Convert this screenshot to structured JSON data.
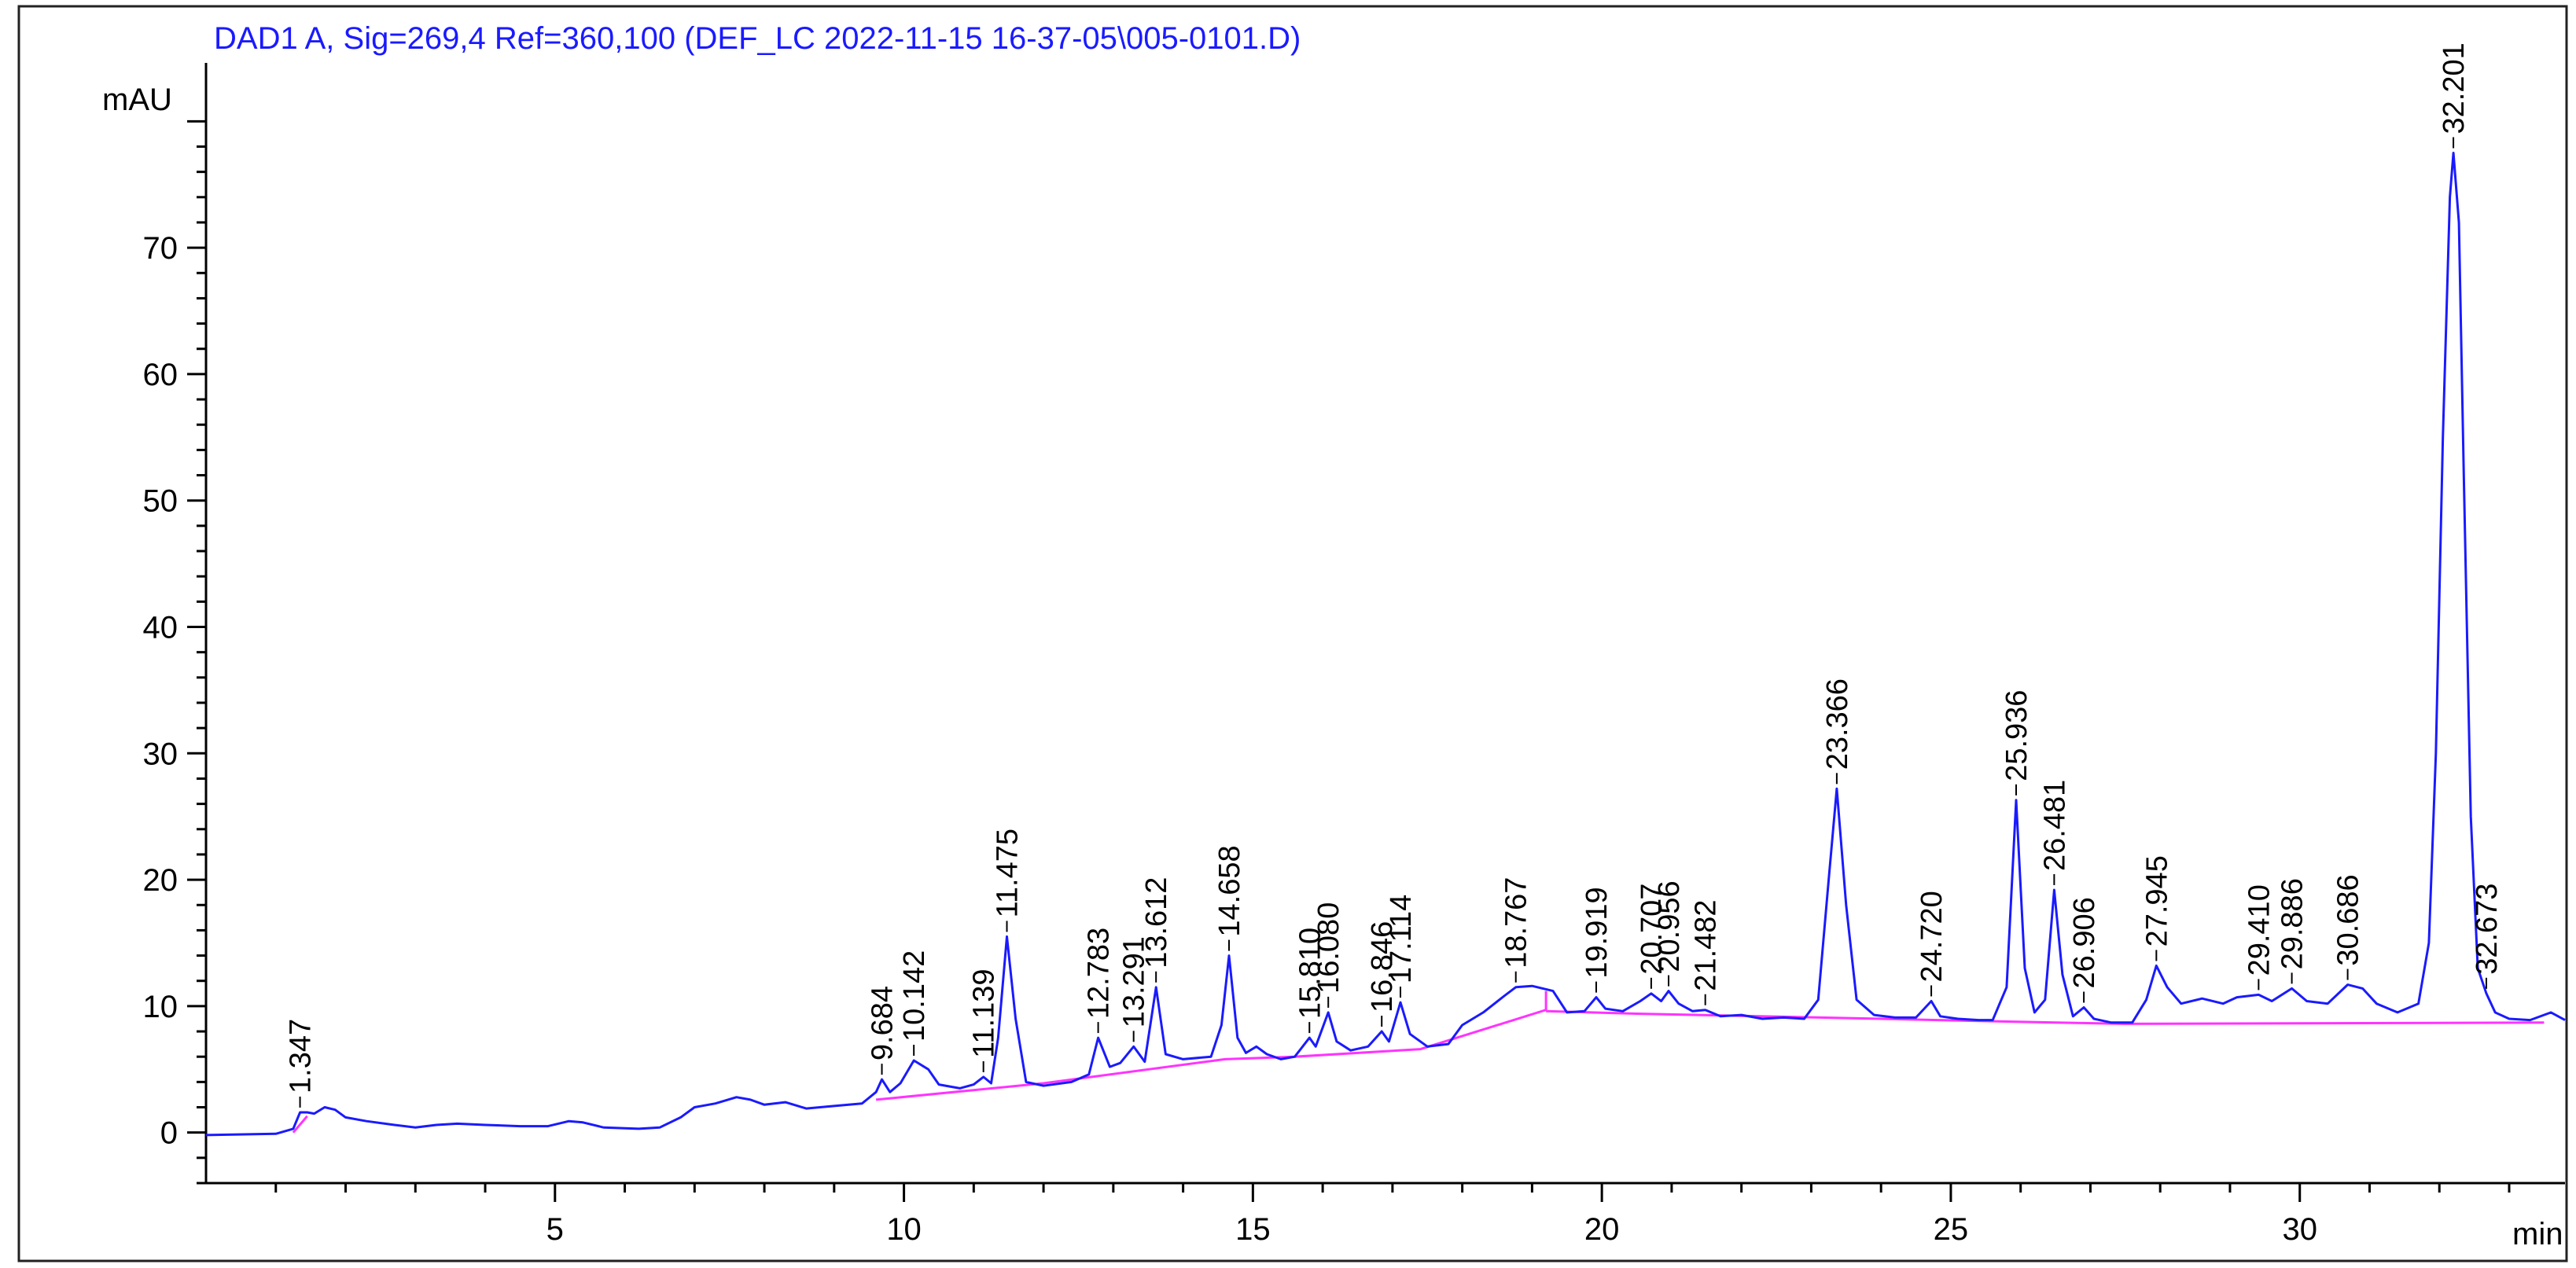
{
  "chart_data": {
    "type": "line",
    "title": "DAD1 A, Sig=269,4 Ref=360,100 (DEF_LC 2022-11-15 16-37-05\\005-0101.D)",
    "ylabel": "mAU",
    "xlabel": "min",
    "xlim": [
      0,
      33.8
    ],
    "ylim": [
      -4,
      84
    ],
    "x_ticks": [
      5,
      10,
      15,
      20,
      25,
      30
    ],
    "y_ticks": [
      0,
      10,
      20,
      30,
      40,
      50,
      60,
      70
    ],
    "grid": false,
    "colors": {
      "signal": "#1a1aff",
      "baseline": "#ff33ff",
      "title": "#1a1aff"
    },
    "series": [
      {
        "points": [
          [
            0,
            -0.2
          ],
          [
            1.0,
            -0.1
          ],
          [
            1.25,
            0.3
          ],
          [
            1.347,
            1.6
          ],
          [
            1.45,
            1.6
          ],
          [
            1.55,
            1.5
          ],
          [
            1.7,
            2.0
          ],
          [
            1.85,
            1.8
          ],
          [
            2.0,
            1.2
          ],
          [
            2.3,
            0.9
          ],
          [
            2.7,
            0.6
          ],
          [
            3.0,
            0.4
          ],
          [
            3.3,
            0.6
          ],
          [
            3.6,
            0.7
          ],
          [
            4.0,
            0.6
          ],
          [
            4.5,
            0.5
          ],
          [
            4.9,
            0.5
          ],
          [
            5.2,
            0.9
          ],
          [
            5.4,
            0.8
          ],
          [
            5.7,
            0.4
          ],
          [
            6.2,
            0.3
          ],
          [
            6.5,
            0.4
          ],
          [
            6.8,
            1.2
          ],
          [
            7.0,
            2.0
          ],
          [
            7.3,
            2.3
          ],
          [
            7.6,
            2.8
          ],
          [
            7.8,
            2.6
          ],
          [
            8.0,
            2.2
          ],
          [
            8.3,
            2.4
          ],
          [
            8.6,
            1.9
          ],
          [
            9.0,
            2.1
          ],
          [
            9.4,
            2.3
          ],
          [
            9.6,
            3.2
          ],
          [
            9.684,
            4.2
          ],
          [
            9.8,
            3.2
          ],
          [
            9.95,
            3.9
          ],
          [
            10.142,
            5.7
          ],
          [
            10.35,
            5.0
          ],
          [
            10.5,
            3.8
          ],
          [
            10.8,
            3.5
          ],
          [
            11.0,
            3.8
          ],
          [
            11.139,
            4.4
          ],
          [
            11.25,
            3.9
          ],
          [
            11.35,
            7.5
          ],
          [
            11.475,
            15.5
          ],
          [
            11.6,
            9.0
          ],
          [
            11.75,
            4.0
          ],
          [
            12.0,
            3.7
          ],
          [
            12.4,
            4.0
          ],
          [
            12.65,
            4.6
          ],
          [
            12.783,
            7.5
          ],
          [
            12.95,
            5.2
          ],
          [
            13.1,
            5.5
          ],
          [
            13.291,
            6.8
          ],
          [
            13.45,
            5.6
          ],
          [
            13.612,
            11.5
          ],
          [
            13.75,
            6.2
          ],
          [
            14.0,
            5.8
          ],
          [
            14.4,
            6.0
          ],
          [
            14.55,
            8.5
          ],
          [
            14.658,
            14.0
          ],
          [
            14.78,
            7.5
          ],
          [
            14.9,
            6.3
          ],
          [
            15.05,
            6.8
          ],
          [
            15.2,
            6.2
          ],
          [
            15.4,
            5.8
          ],
          [
            15.6,
            6.0
          ],
          [
            15.81,
            7.5
          ],
          [
            15.9,
            6.8
          ],
          [
            16.08,
            9.5
          ],
          [
            16.2,
            7.2
          ],
          [
            16.4,
            6.5
          ],
          [
            16.65,
            6.8
          ],
          [
            16.846,
            8.0
          ],
          [
            16.95,
            7.2
          ],
          [
            17.114,
            10.3
          ],
          [
            17.25,
            7.8
          ],
          [
            17.5,
            6.8
          ],
          [
            17.8,
            7.0
          ],
          [
            18.0,
            8.5
          ],
          [
            18.3,
            9.5
          ],
          [
            18.6,
            10.8
          ],
          [
            18.767,
            11.5
          ],
          [
            19.0,
            11.6
          ],
          [
            19.3,
            11.2
          ],
          [
            19.5,
            9.5
          ],
          [
            19.75,
            9.6
          ],
          [
            19.919,
            10.7
          ],
          [
            20.05,
            9.8
          ],
          [
            20.3,
            9.6
          ],
          [
            20.55,
            10.4
          ],
          [
            20.707,
            11.0
          ],
          [
            20.85,
            10.4
          ],
          [
            20.956,
            11.2
          ],
          [
            21.1,
            10.2
          ],
          [
            21.3,
            9.6
          ],
          [
            21.482,
            9.7
          ],
          [
            21.7,
            9.2
          ],
          [
            22.0,
            9.3
          ],
          [
            22.3,
            9.0
          ],
          [
            22.6,
            9.1
          ],
          [
            22.9,
            9.0
          ],
          [
            23.1,
            10.5
          ],
          [
            23.25,
            20.0
          ],
          [
            23.366,
            27.2
          ],
          [
            23.5,
            18.0
          ],
          [
            23.65,
            10.5
          ],
          [
            23.9,
            9.3
          ],
          [
            24.2,
            9.1
          ],
          [
            24.5,
            9.1
          ],
          [
            24.72,
            10.4
          ],
          [
            24.85,
            9.2
          ],
          [
            25.1,
            9.0
          ],
          [
            25.4,
            8.9
          ],
          [
            25.6,
            8.9
          ],
          [
            25.8,
            11.5
          ],
          [
            25.936,
            26.3
          ],
          [
            26.06,
            13.0
          ],
          [
            26.2,
            9.5
          ],
          [
            26.35,
            10.5
          ],
          [
            26.481,
            19.2
          ],
          [
            26.6,
            12.5
          ],
          [
            26.75,
            9.2
          ],
          [
            26.906,
            9.9
          ],
          [
            27.05,
            9.0
          ],
          [
            27.3,
            8.7
          ],
          [
            27.6,
            8.7
          ],
          [
            27.8,
            10.5
          ],
          [
            27.945,
            13.2
          ],
          [
            28.1,
            11.5
          ],
          [
            28.3,
            10.2
          ],
          [
            28.6,
            10.6
          ],
          [
            28.9,
            10.2
          ],
          [
            29.1,
            10.7
          ],
          [
            29.41,
            10.9
          ],
          [
            29.6,
            10.4
          ],
          [
            29.886,
            11.4
          ],
          [
            30.1,
            10.4
          ],
          [
            30.4,
            10.2
          ],
          [
            30.686,
            11.7
          ],
          [
            30.9,
            11.4
          ],
          [
            31.1,
            10.2
          ],
          [
            31.4,
            9.5
          ],
          [
            31.7,
            10.2
          ],
          [
            31.85,
            15.0
          ],
          [
            31.95,
            30.0
          ],
          [
            32.05,
            55.0
          ],
          [
            32.15,
            74.0
          ],
          [
            32.201,
            77.5
          ],
          [
            32.28,
            72.0
          ],
          [
            32.35,
            52.0
          ],
          [
            32.45,
            25.0
          ],
          [
            32.55,
            13.0
          ],
          [
            32.673,
            11.0
          ],
          [
            32.8,
            9.5
          ],
          [
            33.0,
            9.0
          ],
          [
            33.3,
            8.9
          ],
          [
            33.6,
            9.5
          ],
          [
            33.8,
            8.9
          ]
        ]
      }
    ],
    "baseline_segments": [
      {
        "points": [
          [
            1.25,
            0.0
          ],
          [
            1.45,
            1.3
          ]
        ]
      },
      {
        "points": [
          [
            9.6,
            2.6
          ],
          [
            12.0,
            3.9
          ],
          [
            14.6,
            5.8
          ],
          [
            15.6,
            6.0
          ],
          [
            17.4,
            6.6
          ],
          [
            19.2,
            9.7
          ],
          [
            19.2,
            11.2
          ]
        ]
      },
      {
        "points": [
          [
            19.2,
            9.6
          ],
          [
            20.5,
            9.4
          ],
          [
            24.0,
            9.0
          ],
          [
            26.5,
            8.7
          ],
          [
            27.5,
            8.6
          ],
          [
            33.5,
            8.7
          ]
        ]
      }
    ],
    "peak_labels": [
      "1.347",
      "9.684",
      "10.142",
      "11.139",
      "11.475",
      "12.783",
      "13.291",
      "13.612",
      "14.658",
      "15.810",
      "16.080",
      "16.846",
      "17.114",
      "18.767",
      "19.919",
      "20.707",
      "20.956",
      "21.482",
      "23.366",
      "24.720",
      "25.936",
      "26.481",
      "26.906",
      "27.945",
      "29.410",
      "29.886",
      "30.686",
      "32.201",
      "32.673"
    ],
    "peak_x": [
      1.347,
      9.684,
      10.142,
      11.139,
      11.475,
      12.783,
      13.291,
      13.612,
      14.658,
      15.81,
      16.08,
      16.846,
      17.114,
      18.767,
      19.919,
      20.707,
      20.956,
      21.482,
      23.366,
      24.72,
      25.936,
      26.481,
      26.906,
      27.945,
      29.41,
      29.886,
      30.686,
      32.201,
      32.673
    ],
    "peak_y": [
      1.6,
      4.2,
      5.7,
      4.4,
      15.5,
      7.5,
      6.8,
      11.5,
      14.0,
      7.5,
      9.5,
      8.0,
      10.3,
      11.5,
      10.7,
      11.0,
      11.2,
      9.7,
      27.2,
      10.4,
      26.3,
      19.2,
      9.9,
      13.2,
      10.9,
      11.4,
      11.7,
      77.5,
      11.0
    ]
  }
}
